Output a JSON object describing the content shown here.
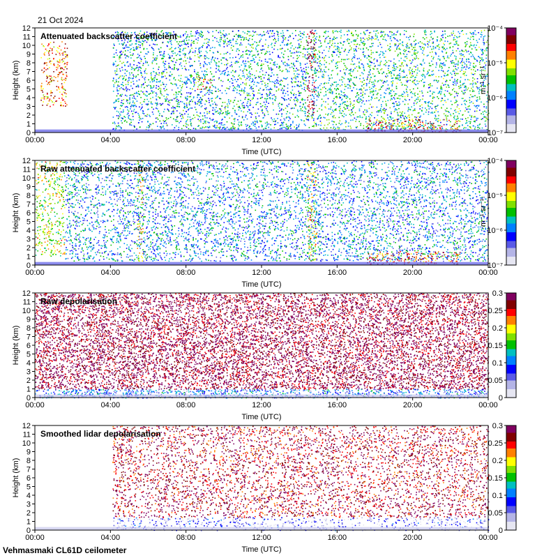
{
  "header": {
    "date": "21 Oct 2024"
  },
  "footer": {
    "site": "Vehmasmaki CL61D ceilometer"
  },
  "colors": {
    "background": "#ffffff",
    "axis": "#000000",
    "colormap": [
      "#e6e6f2",
      "#b4b4e6",
      "#5a5ae6",
      "#0000ff",
      "#0080ff",
      "#00c0c0",
      "#00c000",
      "#80e000",
      "#ffff00",
      "#ff8000",
      "#ff0000",
      "#800000",
      "#800060"
    ]
  },
  "chart_data": [
    {
      "type": "heatmap",
      "title": "Attenuated backscatter coefficient",
      "xlabel": "Time (UTC)",
      "ylabel": "Height (km)",
      "xticks": [
        "00:00",
        "04:00",
        "08:00",
        "12:00",
        "16:00",
        "20:00",
        "00:00"
      ],
      "xlim_hours": [
        0,
        24
      ],
      "ylim": [
        0,
        12
      ],
      "yticks": [
        0,
        1,
        2,
        3,
        4,
        5,
        6,
        7,
        8,
        9,
        10,
        11,
        12
      ],
      "colorbar": {
        "scale": "log",
        "range": [
          1e-07,
          0.0001
        ],
        "ticks": [
          "10⁻⁷",
          "10⁻⁶",
          "10⁻⁵",
          "10⁻⁴"
        ],
        "unit": "m⁻¹ sr⁻¹"
      },
      "features": [
        {
          "t0": 0.3,
          "t1": 1.7,
          "h0": 3,
          "h1": 10.5,
          "level": 0.75
        },
        {
          "t0": 4.1,
          "t1": 14.5,
          "h0": 0.3,
          "h1": 11.8,
          "level": 0.4
        },
        {
          "t0": 14.6,
          "t1": 24,
          "h0": 0.3,
          "h1": 11.8,
          "level": 0.45
        },
        {
          "t0": 17.5,
          "t1": 22.5,
          "h0": 0.1,
          "h1": 1.6,
          "level": 0.8
        },
        {
          "t0": 14.4,
          "t1": 14.8,
          "h0": 2,
          "h1": 12,
          "level": 0.95
        },
        {
          "t0": 8.5,
          "t1": 9.3,
          "h0": 5,
          "h1": 6.5,
          "level": 0.7
        }
      ]
    },
    {
      "type": "heatmap",
      "title": "Raw attenuated backscatter coefficient",
      "xlabel": "Time (UTC)",
      "ylabel": "Height (km)",
      "xticks": [
        "00:00",
        "04:00",
        "08:00",
        "12:00",
        "16:00",
        "20:00",
        "00:00"
      ],
      "xlim_hours": [
        0,
        24
      ],
      "ylim": [
        0,
        12
      ],
      "yticks": [
        0,
        1,
        2,
        3,
        4,
        5,
        6,
        7,
        8,
        9,
        10,
        11,
        12
      ],
      "colorbar": {
        "scale": "log",
        "range": [
          1e-07,
          0.0001
        ],
        "ticks": [
          "10⁻⁷",
          "10⁻⁶",
          "10⁻⁵",
          "10⁻⁴"
        ],
        "unit": "m⁻¹ sr⁻¹"
      },
      "features": [
        {
          "t0": 0,
          "t1": 1.6,
          "h0": 1,
          "h1": 12,
          "level": 0.6
        },
        {
          "t0": 1.6,
          "t1": 24,
          "h0": 0.5,
          "h1": 12,
          "level": 0.35
        },
        {
          "t0": 5.4,
          "t1": 5.7,
          "h0": 0.5,
          "h1": 12,
          "level": 0.6
        },
        {
          "t0": 14.4,
          "t1": 14.9,
          "h0": 0.5,
          "h1": 12,
          "level": 0.62
        },
        {
          "t0": 17.5,
          "t1": 22.5,
          "h0": 0.1,
          "h1": 1.6,
          "level": 0.8
        }
      ]
    },
    {
      "type": "heatmap",
      "title": "Raw depolarisation",
      "xlabel": "Time (UTC)",
      "ylabel": "Height (km)",
      "xticks": [
        "00:00",
        "04:00",
        "08:00",
        "12:00",
        "16:00",
        "20:00",
        "00:00"
      ],
      "xlim_hours": [
        0,
        24
      ],
      "ylim": [
        0,
        12
      ],
      "yticks": [
        0,
        1,
        2,
        3,
        4,
        5,
        6,
        7,
        8,
        9,
        10,
        11,
        12
      ],
      "colorbar": {
        "scale": "linear",
        "range": [
          0,
          0.3
        ],
        "ticks": [
          "0",
          "0.05",
          "0.1",
          "0.15",
          "0.2",
          "0.25",
          "0.3"
        ]
      },
      "features": [
        {
          "t0": 0,
          "t1": 24,
          "h0": 1,
          "h1": 12,
          "level": 0.95
        },
        {
          "t0": 0,
          "t1": 24,
          "h0": 0,
          "h1": 1,
          "level": 0.3
        }
      ]
    },
    {
      "type": "heatmap",
      "title": "Smoothed lidar depolarisation",
      "xlabel": "Time (UTC)",
      "ylabel": "Height (km)",
      "xticks": [
        "00:00",
        "04:00",
        "08:00",
        "12:00",
        "16:00",
        "20:00",
        "00:00"
      ],
      "xlim_hours": [
        0,
        24
      ],
      "ylim": [
        0,
        12
      ],
      "yticks": [
        0,
        1,
        2,
        3,
        4,
        5,
        6,
        7,
        8,
        9,
        10,
        11,
        12
      ],
      "colorbar": {
        "scale": "linear",
        "range": [
          0,
          0.3
        ],
        "ticks": [
          "0",
          "0.05",
          "0.1",
          "0.15",
          "0.2",
          "0.25",
          "0.3"
        ]
      },
      "features": [
        {
          "t0": 4.1,
          "t1": 24,
          "h0": 0,
          "h1": 1.5,
          "level": 0.15
        },
        {
          "t0": 4.1,
          "t1": 24,
          "h0": 1.5,
          "h1": 12,
          "level": 0.9
        },
        {
          "t0": 8.7,
          "t1": 9.0,
          "h0": 5.5,
          "h1": 6.5,
          "level": 0.95
        }
      ]
    }
  ]
}
